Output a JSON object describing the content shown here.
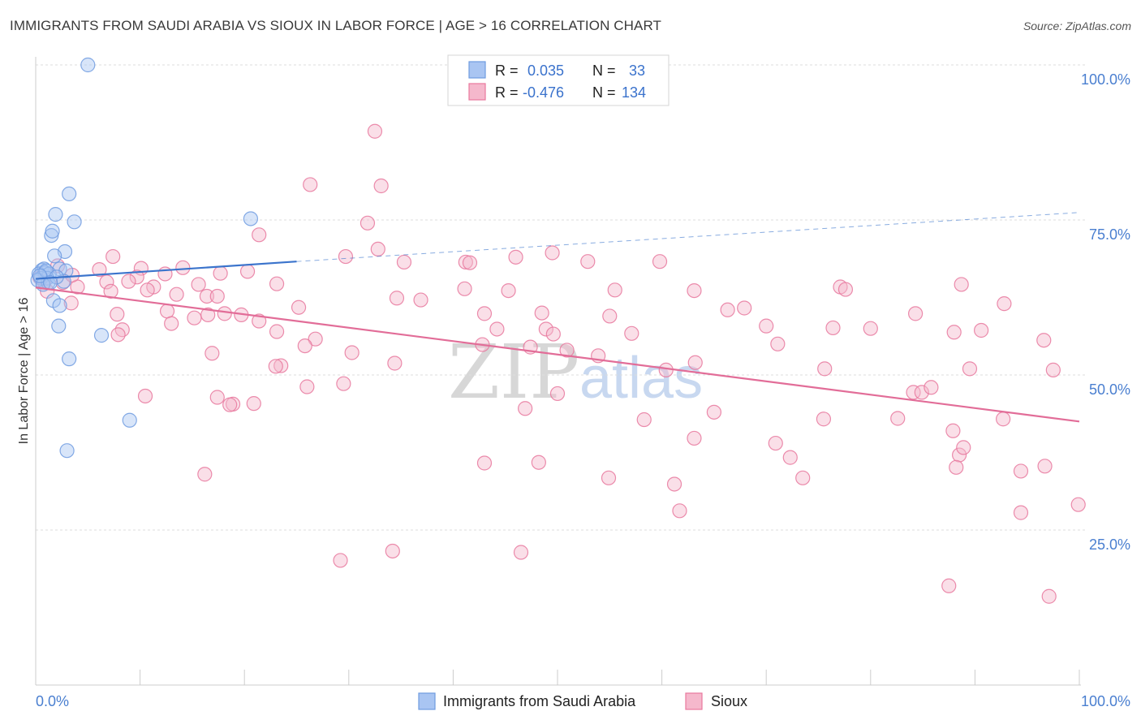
{
  "title": "IMMIGRANTS FROM SAUDI ARABIA VS SIOUX IN LABOR FORCE | AGE > 16 CORRELATION CHART",
  "source": "Source: ZipAtlas.com",
  "watermark": {
    "zip": "ZIP",
    "atlas": "atlas"
  },
  "legend": {
    "rows": [
      {
        "r_label": "R =",
        "r_value": "0.035",
        "n_label": "N =",
        "n_value": "33"
      },
      {
        "r_label": "R =",
        "r_value": "-0.476",
        "n_label": "N =",
        "n_value": "134"
      }
    ]
  },
  "bottom_legend": [
    "Immigrants from Saudi Arabia",
    "Sioux"
  ],
  "chart_data": {
    "type": "scatter",
    "title": "IMMIGRANTS FROM SAUDI ARABIA VS SIOUX IN LABOR FORCE | AGE > 16 CORRELATION CHART",
    "xlabel": "",
    "ylabel": "In Labor Force | Age > 16",
    "xlim": [
      0,
      100
    ],
    "ylim": [
      0,
      103
    ],
    "x_tick_labels": [
      "0.0%",
      "100.0%"
    ],
    "y_ticks": [
      25,
      50,
      75,
      100
    ],
    "y_tick_labels": [
      "25.0%",
      "50.0%",
      "75.0%",
      "100.0%"
    ],
    "colors": {
      "blue": "#6f9be0",
      "blue_fill": "#a9c5f2",
      "pink": "#e8789e",
      "pink_fill": "#f5b8cc",
      "blue_line": "#3b74cc",
      "pink_line": "#e26d98",
      "tick": "#4a7fd0"
    },
    "series": [
      {
        "name": "Immigrants from Saudi Arabia",
        "color": "blue",
        "R": 0.035,
        "N": 33,
        "trend": {
          "x0": 0,
          "y0": 65.5,
          "x1": 25,
          "y1": 68.3,
          "dash_to_x": 100,
          "dash_to_y": 76.2
        },
        "points": [
          [
            5,
            100
          ],
          [
            3.2,
            79.2
          ],
          [
            1.9,
            75.9
          ],
          [
            3.7,
            74.7
          ],
          [
            1.5,
            72.5
          ],
          [
            1.6,
            73.2
          ],
          [
            2.8,
            69.9
          ],
          [
            1.8,
            69.2
          ],
          [
            2.3,
            67.1
          ],
          [
            0.6,
            66.9
          ],
          [
            0.8,
            67.1
          ],
          [
            2.9,
            66.8
          ],
          [
            0.3,
            66.3
          ],
          [
            0.9,
            66.5
          ],
          [
            1.3,
            66.3
          ],
          [
            1.1,
            65.6
          ],
          [
            0.5,
            65.6
          ],
          [
            0.2,
            65.3
          ],
          [
            1.2,
            64.9
          ],
          [
            2.7,
            65.1
          ],
          [
            0.7,
            64.6
          ],
          [
            1.7,
            62
          ],
          [
            2.3,
            61.2
          ],
          [
            2.2,
            57.9
          ],
          [
            6.3,
            56.4
          ],
          [
            3.2,
            52.6
          ],
          [
            9,
            42.7
          ],
          [
            3,
            37.8
          ],
          [
            20.6,
            75.2
          ],
          [
            1,
            66.8
          ],
          [
            0.4,
            66.0
          ],
          [
            2.0,
            65.8
          ],
          [
            1.4,
            64.9
          ]
        ]
      },
      {
        "name": "Sioux",
        "color": "pink",
        "R": -0.476,
        "N": 134,
        "trend": {
          "x0": 0,
          "y0": 64.1,
          "x1": 100,
          "y1": 42.5
        },
        "points": [
          [
            32.5,
            89.3
          ],
          [
            26.3,
            80.7
          ],
          [
            33.1,
            80.5
          ],
          [
            31.8,
            74.5
          ],
          [
            21.4,
            72.6
          ],
          [
            32.8,
            70.3
          ],
          [
            29.7,
            69.1
          ],
          [
            35.3,
            68.2
          ],
          [
            41.2,
            68.2
          ],
          [
            7.4,
            69.1
          ],
          [
            10.1,
            67.2
          ],
          [
            14.1,
            67.3
          ],
          [
            6.1,
            67.0
          ],
          [
            12.4,
            66.3
          ],
          [
            20.3,
            66.7
          ],
          [
            17.7,
            66.4
          ],
          [
            23.1,
            64.7
          ],
          [
            15.6,
            64.6
          ],
          [
            9.7,
            65.8
          ],
          [
            6.8,
            65.0
          ],
          [
            11.3,
            64.2
          ],
          [
            8.9,
            65.1
          ],
          [
            2.6,
            64.9
          ],
          [
            4.0,
            64.2
          ],
          [
            3.5,
            66.1
          ],
          [
            2.1,
            67.6
          ],
          [
            1.1,
            63.5
          ],
          [
            0.8,
            65.0
          ],
          [
            0.4,
            65.7
          ],
          [
            13.5,
            63.0
          ],
          [
            16.4,
            62.7
          ],
          [
            17.4,
            62.7
          ],
          [
            7.2,
            63.5
          ],
          [
            3.4,
            61.6
          ],
          [
            25.2,
            60.9
          ],
          [
            12.6,
            60.3
          ],
          [
            16.5,
            59.7
          ],
          [
            18.1,
            59.9
          ],
          [
            15.2,
            59.2
          ],
          [
            19.7,
            59.7
          ],
          [
            21.4,
            58.7
          ],
          [
            13.0,
            58.3
          ],
          [
            7.8,
            59.8
          ],
          [
            8.3,
            57.3
          ],
          [
            23.1,
            57.0
          ],
          [
            7.9,
            56.5
          ],
          [
            26.8,
            55.8
          ],
          [
            25.8,
            54.7
          ],
          [
            16.9,
            53.5
          ],
          [
            30.3,
            53.6
          ],
          [
            23.5,
            51.5
          ],
          [
            23.0,
            51.4
          ],
          [
            34.4,
            51.9
          ],
          [
            26.0,
            48.1
          ],
          [
            29.5,
            48.6
          ],
          [
            10.5,
            46.6
          ],
          [
            17.4,
            46.4
          ],
          [
            18.9,
            45.3
          ],
          [
            18.6,
            45.2
          ],
          [
            20.9,
            45.4
          ],
          [
            16.2,
            34.0
          ],
          [
            41.6,
            68.1
          ],
          [
            49.5,
            69.7
          ],
          [
            46.0,
            69.0
          ],
          [
            52.9,
            68.3
          ],
          [
            59.8,
            68.3
          ],
          [
            41.1,
            63.9
          ],
          [
            45.3,
            63.6
          ],
          [
            55.5,
            63.7
          ],
          [
            63.1,
            63.6
          ],
          [
            34.6,
            62.4
          ],
          [
            36.9,
            62.1
          ],
          [
            43.0,
            59.9
          ],
          [
            48.5,
            60.0
          ],
          [
            55.0,
            59.5
          ],
          [
            66.3,
            60.5
          ],
          [
            67.9,
            60.8
          ],
          [
            70.0,
            57.9
          ],
          [
            44.2,
            57.4
          ],
          [
            48.9,
            57.4
          ],
          [
            49.6,
            56.6
          ],
          [
            57.1,
            56.7
          ],
          [
            42.8,
            54.9
          ],
          [
            47.4,
            54.5
          ],
          [
            50.9,
            54.0
          ],
          [
            71.1,
            55.0
          ],
          [
            53.9,
            53.1
          ],
          [
            63.2,
            52.0
          ],
          [
            50.0,
            47.0
          ],
          [
            46.9,
            44.6
          ],
          [
            60.4,
            50.8
          ],
          [
            65.0,
            44.0
          ],
          [
            58.3,
            42.8
          ],
          [
            63.1,
            39.8
          ],
          [
            70.9,
            39.0
          ],
          [
            72.3,
            36.7
          ],
          [
            43.0,
            35.8
          ],
          [
            48.2,
            35.9
          ],
          [
            54.9,
            33.4
          ],
          [
            61.2,
            32.4
          ],
          [
            61.7,
            28.1
          ],
          [
            73.5,
            33.4
          ],
          [
            29.2,
            20.1
          ],
          [
            34.2,
            21.6
          ],
          [
            46.5,
            21.4
          ],
          [
            77.1,
            64.2
          ],
          [
            77.6,
            63.8
          ],
          [
            76.4,
            57.6
          ],
          [
            80.0,
            57.5
          ],
          [
            84.3,
            59.9
          ],
          [
            88.0,
            56.9
          ],
          [
            90.6,
            57.2
          ],
          [
            96.6,
            55.6
          ],
          [
            75.6,
            51.0
          ],
          [
            89.5,
            51.0
          ],
          [
            97.5,
            50.8
          ],
          [
            84.1,
            47.2
          ],
          [
            84.9,
            47.2
          ],
          [
            85.8,
            48.0
          ],
          [
            75.5,
            42.9
          ],
          [
            82.6,
            43.0
          ],
          [
            92.7,
            42.9
          ],
          [
            87.9,
            41.0
          ],
          [
            88.5,
            37.1
          ],
          [
            88.9,
            38.3
          ],
          [
            88.2,
            35.1
          ],
          [
            94.4,
            34.5
          ],
          [
            96.7,
            35.3
          ],
          [
            94.4,
            27.8
          ],
          [
            99.9,
            29.1
          ],
          [
            87.5,
            16.0
          ],
          [
            97.1,
            14.3
          ],
          [
            88.7,
            64.6
          ],
          [
            92.8,
            61.5
          ],
          [
            10.7,
            63.7
          ]
        ]
      }
    ]
  }
}
